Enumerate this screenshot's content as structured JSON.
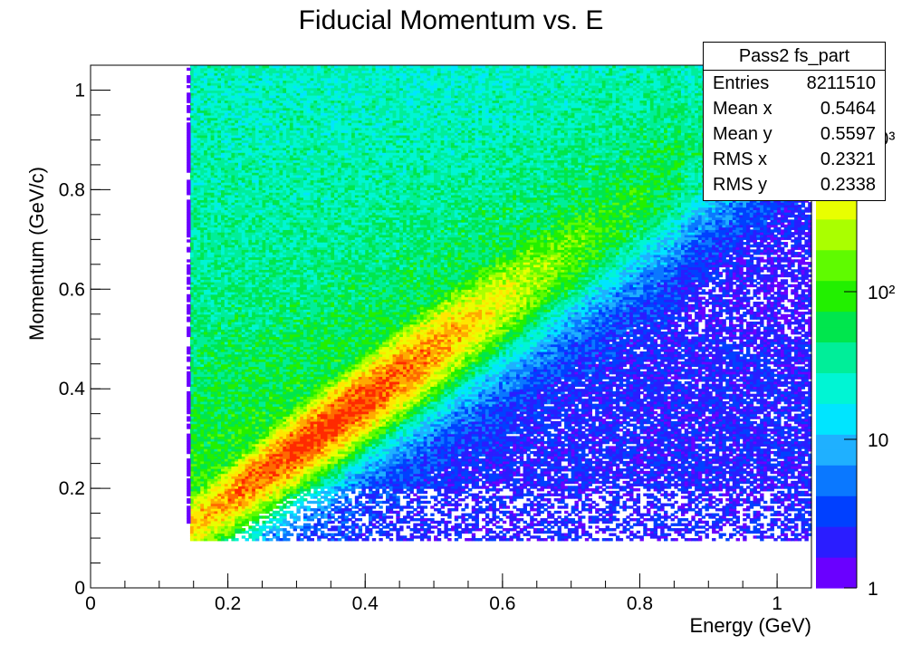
{
  "chart_data": {
    "type": "heatmap",
    "title": "Fiducial Momentum vs. E",
    "xlabel": "Energy (GeV)",
    "ylabel": "Momentum (GeV/c)",
    "xlim": [
      0,
      1.05
    ],
    "ylim": [
      0,
      1.05
    ],
    "x_ticks": [
      "0",
      "0.2",
      "0.4",
      "0.6",
      "0.8",
      "1"
    ],
    "y_ticks": [
      "0",
      "0.2",
      "0.4",
      "0.6",
      "0.8",
      "1"
    ],
    "z_scale": "log",
    "z_ticks": [
      "1",
      "10",
      "10²",
      "10³"
    ],
    "colormap": [
      "#6a00ff",
      "#2a1dff",
      "#0040ff",
      "#0a78ff",
      "#1fb0ff",
      "#00e5ff",
      "#00f5d4",
      "#00ee99",
      "#00e64d",
      "#22f000",
      "#5ffb00",
      "#aaff00",
      "#e8ff00",
      "#ffe600",
      "#ffaa00",
      "#ff6a00",
      "#ff2a00"
    ],
    "regions": {
      "energy_cut": 0.145,
      "band_peak_energy": 0.3,
      "band_peak_momentum": 0.28,
      "band_slope_approx": 1.0
    },
    "stats": {
      "name": "Pass2 fs_part",
      "entries": "8211510",
      "mean_x": "0.5464",
      "mean_y": "0.5597",
      "rms_x": "0.2321",
      "rms_y": "0.2338"
    }
  }
}
